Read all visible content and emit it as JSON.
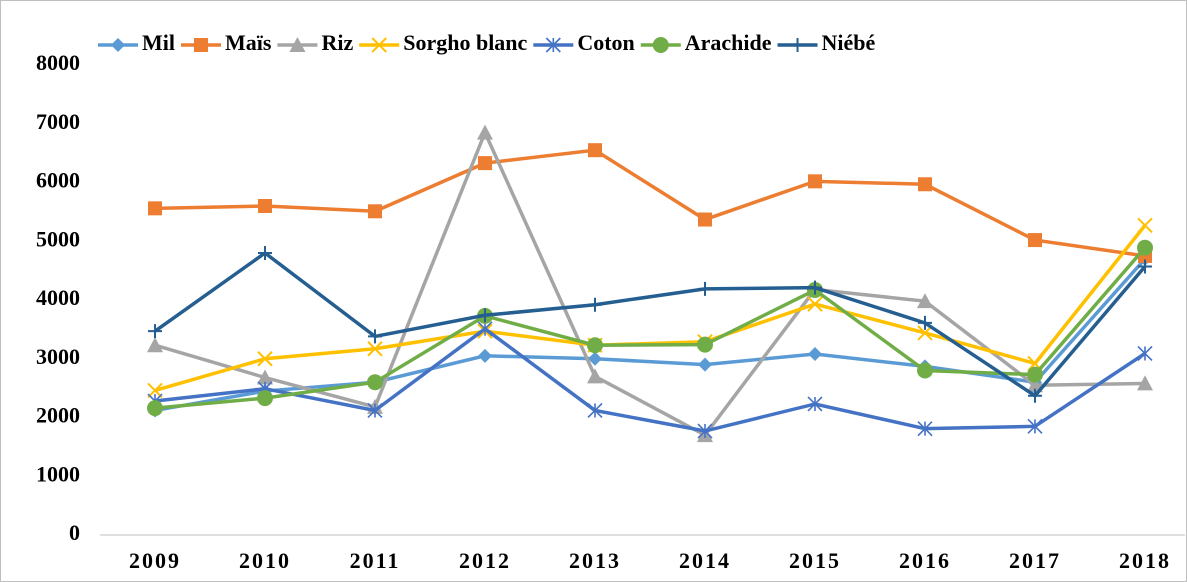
{
  "chart_data": {
    "type": "line",
    "categories": [
      "2009",
      "2010",
      "2011",
      "2012",
      "2013",
      "2014",
      "2015",
      "2016",
      "2017",
      "2018"
    ],
    "series": [
      {
        "name": "Mil",
        "color": "#5b9bd5",
        "marker": "diamond",
        "values": [
          2120,
          2450,
          2600,
          3050,
          3000,
          2900,
          3080,
          2870,
          2600,
          4700
        ]
      },
      {
        "name": "Maïs",
        "color": "#ed7d31",
        "marker": "square",
        "values": [
          5560,
          5600,
          5510,
          6330,
          6550,
          5370,
          6020,
          5970,
          5020,
          4750
        ]
      },
      {
        "name": "Riz",
        "color": "#a5a5a5",
        "marker": "triangle",
        "values": [
          3230,
          2680,
          2180,
          6850,
          2700,
          1700,
          4180,
          3980,
          2550,
          2580
        ]
      },
      {
        "name": "Sorgho blanc",
        "color": "#ffc000",
        "marker": "x",
        "values": [
          2460,
          3000,
          3170,
          3470,
          3230,
          3290,
          3930,
          3440,
          2920,
          5270
        ]
      },
      {
        "name": "Coton",
        "color": "#4472c4",
        "marker": "asterisk",
        "values": [
          2280,
          2490,
          2120,
          3510,
          2120,
          1770,
          2230,
          1810,
          1850,
          3090
        ]
      },
      {
        "name": "Arachide",
        "color": "#70ad47",
        "marker": "circle",
        "values": [
          2160,
          2330,
          2600,
          3730,
          3230,
          3240,
          4170,
          2800,
          2730,
          4890
        ]
      },
      {
        "name": "Niébé",
        "color": "#255e91",
        "marker": "plus",
        "values": [
          3470,
          4800,
          3380,
          3740,
          3920,
          4190,
          4210,
          3610,
          2370,
          4570
        ]
      }
    ],
    "ylim": [
      0,
      8000
    ],
    "yticks": [
      0,
      1000,
      2000,
      3000,
      4000,
      5000,
      6000,
      7000,
      8000
    ],
    "grid": false,
    "legend": "top"
  }
}
